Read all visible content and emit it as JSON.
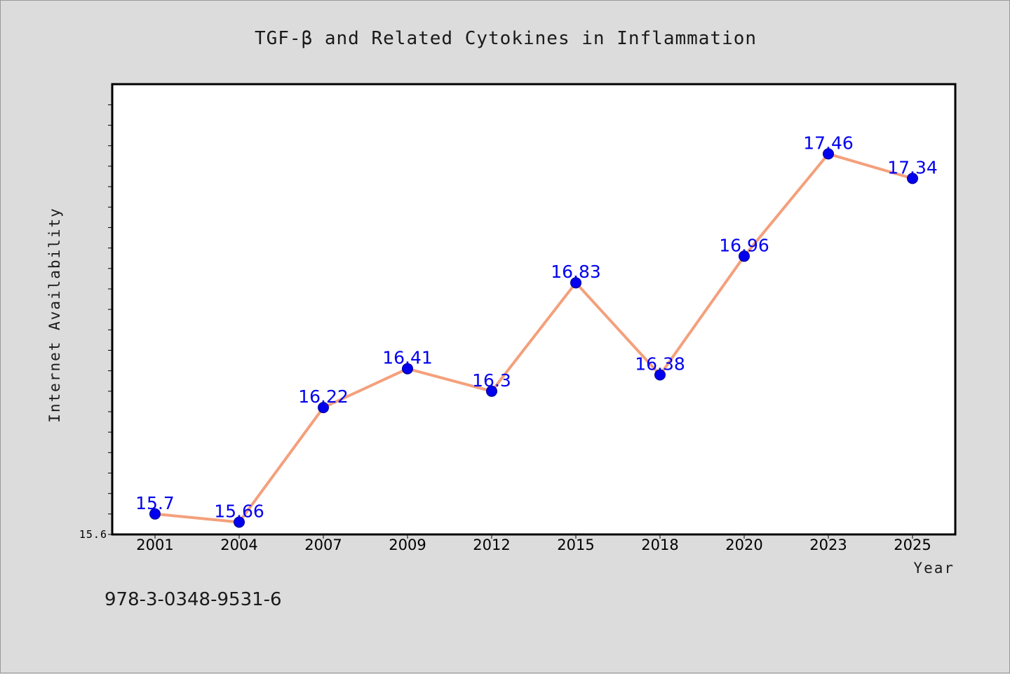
{
  "chart_data": {
    "type": "line",
    "title": "TGF-β and Related Cytokines in Inflammation",
    "xlabel": "Year",
    "ylabel": "Internet Availability",
    "categories": [
      "2001",
      "2004",
      "2007",
      "2009",
      "2012",
      "2015",
      "2018",
      "2020",
      "2023",
      "2025"
    ],
    "values": [
      15.7,
      15.66,
      16.22,
      16.41,
      16.3,
      16.83,
      16.38,
      16.96,
      17.46,
      17.34
    ],
    "data_labels": [
      "15.7",
      "15.66",
      "16.22",
      "16.41",
      "16.3",
      "16.83",
      "16.38",
      "16.96",
      "17.46",
      "17.34"
    ],
    "ylim": [
      15.6,
      17.8
    ],
    "y_tick_label": "15.6",
    "grid": false,
    "line_color": "#f4a07c",
    "marker_color": "#0000ee",
    "label_color": "#0000ee",
    "background_color": "#dcdcdc",
    "plot_background": "#ffffff"
  },
  "footer": {
    "code": "978-3-0348-9531-6"
  }
}
